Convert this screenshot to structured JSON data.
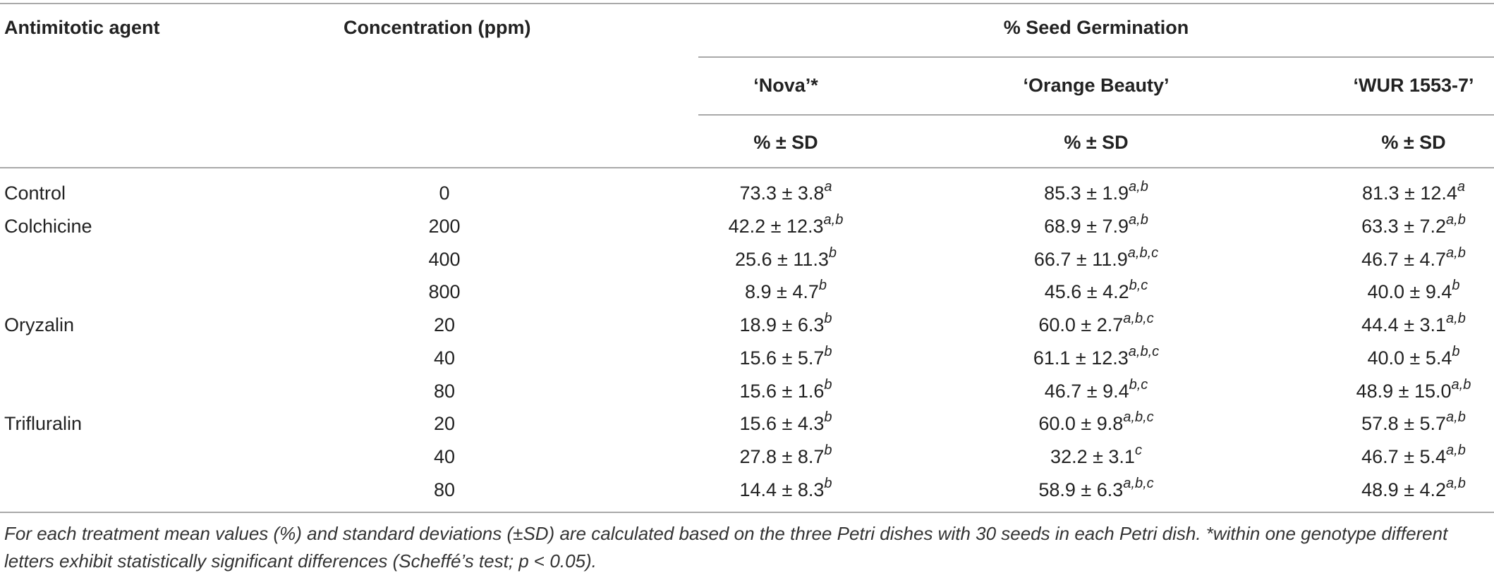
{
  "table": {
    "headers": {
      "agent": "Antimitotic agent",
      "concentration": "Concentration (ppm)",
      "group": "% Seed Germination",
      "genotypes": [
        "‘Nova’*",
        "‘Orange Beauty’",
        "‘WUR 1553-7’"
      ],
      "stat": "% ± SD"
    },
    "rows": [
      {
        "agent": "Control",
        "conc": "0",
        "nova": {
          "v": "73.3 ± 3.8",
          "s": "a"
        },
        "orange": {
          "v": "85.3 ± 1.9",
          "s": "a,b"
        },
        "wur": {
          "v": "81.3 ± 12.4",
          "s": "a"
        }
      },
      {
        "agent": "Colchicine",
        "conc": "200",
        "nova": {
          "v": "42.2 ± 12.3",
          "s": "a,b"
        },
        "orange": {
          "v": "68.9 ± 7.9",
          "s": "a,b"
        },
        "wur": {
          "v": "63.3 ± 7.2",
          "s": "a,b"
        }
      },
      {
        "agent": "",
        "conc": "400",
        "nova": {
          "v": "25.6 ± 11.3",
          "s": "b"
        },
        "orange": {
          "v": "66.7 ± 11.9",
          "s": "a,b,c"
        },
        "wur": {
          "v": "46.7 ± 4.7",
          "s": "a,b"
        }
      },
      {
        "agent": "",
        "conc": "800",
        "nova": {
          "v": "8.9 ± 4.7",
          "s": "b"
        },
        "orange": {
          "v": "45.6 ± 4.2",
          "s": "b,c"
        },
        "wur": {
          "v": "40.0 ± 9.4",
          "s": "b"
        }
      },
      {
        "agent": "Oryzalin",
        "conc": "20",
        "nova": {
          "v": "18.9 ± 6.3",
          "s": "b"
        },
        "orange": {
          "v": "60.0 ± 2.7",
          "s": "a,b,c"
        },
        "wur": {
          "v": "44.4 ± 3.1",
          "s": "a,b"
        }
      },
      {
        "agent": "",
        "conc": "40",
        "nova": {
          "v": "15.6 ± 5.7",
          "s": "b"
        },
        "orange": {
          "v": "61.1 ± 12.3",
          "s": "a,b,c"
        },
        "wur": {
          "v": "40.0 ± 5.4",
          "s": "b"
        }
      },
      {
        "agent": "",
        "conc": "80",
        "nova": {
          "v": "15.6 ± 1.6",
          "s": "b"
        },
        "orange": {
          "v": "46.7 ± 9.4",
          "s": "b,c"
        },
        "wur": {
          "v": "48.9 ± 15.0",
          "s": "a,b"
        }
      },
      {
        "agent": "Trifluralin",
        "conc": "20",
        "nova": {
          "v": "15.6 ± 4.3",
          "s": "b"
        },
        "orange": {
          "v": "60.0 ± 9.8",
          "s": "a,b,c"
        },
        "wur": {
          "v": "57.8 ± 5.7",
          "s": "a,b"
        }
      },
      {
        "agent": "",
        "conc": "40",
        "nova": {
          "v": "27.8 ± 8.7",
          "s": "b"
        },
        "orange": {
          "v": "32.2 ± 3.1",
          "s": "c"
        },
        "wur": {
          "v": "46.7 ± 5.4",
          "s": "a,b"
        }
      },
      {
        "agent": "",
        "conc": "80",
        "nova": {
          "v": "14.4 ± 8.3",
          "s": "b"
        },
        "orange": {
          "v": "58.9 ± 6.3",
          "s": "a,b,c"
        },
        "wur": {
          "v": "48.9 ± 4.2",
          "s": "a,b"
        }
      }
    ]
  },
  "footnote": {
    "part1": "For each treatment mean values (%) and standard deviations (",
    "pm": "±",
    "part2": "SD) are calculated based on the three Petri dishes with 30 seeds in each Petri dish. *within one genotype different letters exhibit statistically significant differences (Scheffé’s test; p ",
    "lt": "<",
    "part3": " 0.05)."
  },
  "colors": {
    "rule": "#a9a9a9",
    "text": "#222222"
  }
}
